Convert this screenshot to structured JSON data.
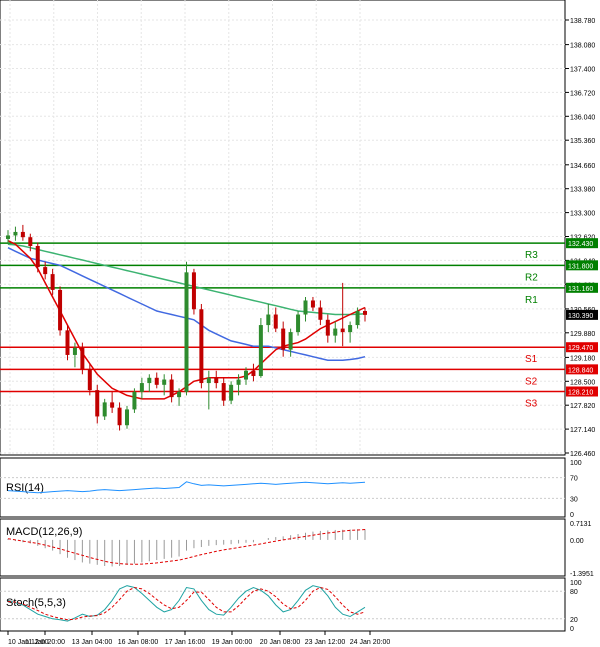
{
  "chart_data": {
    "type": "candlestick",
    "symbol_hint": "",
    "price_axis": {
      "ticks": [
        "138.780",
        "138.080",
        "137.400",
        "136.720",
        "136.040",
        "135.360",
        "134.660",
        "133.980",
        "133.300",
        "132.620",
        "131.940",
        "131.260",
        "130.560",
        "129.880",
        "129.180",
        "128.500",
        "127.820",
        "127.140",
        "126.460"
      ],
      "range": [
        126.46,
        138.78
      ]
    },
    "x_axis": {
      "ticks": [
        "10 Jan 12:00",
        "11 Jan 20:00",
        "13 Jan 04:00",
        "16 Jan 08:00",
        "17 Jan 16:00",
        "19 Jan 00:00",
        "20 Jan 08:00",
        "23 Jan 12:00",
        "24 Jan 20:00"
      ]
    },
    "levels": [
      {
        "name": "R3",
        "value": "132.430",
        "color": "#008000"
      },
      {
        "name": "R2",
        "value": "131.800",
        "color": "#008000"
      },
      {
        "name": "R1",
        "value": "131.160",
        "color": "#008000"
      },
      {
        "name": "S1",
        "value": "129.470",
        "color": "#e00000"
      },
      {
        "name": "S2",
        "value": "128.840",
        "color": "#e00000"
      },
      {
        "name": "S3",
        "value": "128.210",
        "color": "#e00000"
      }
    ],
    "current_price": "130.390",
    "candles": [
      [
        132.55,
        132.8,
        132.4,
        132.65
      ],
      [
        132.65,
        132.9,
        132.5,
        132.75
      ],
      [
        132.75,
        132.95,
        132.5,
        132.6
      ],
      [
        132.6,
        132.7,
        132.2,
        132.35
      ],
      [
        132.35,
        132.45,
        131.6,
        131.75
      ],
      [
        131.75,
        131.9,
        131.4,
        131.55
      ],
      [
        131.55,
        131.7,
        130.95,
        131.1
      ],
      [
        131.1,
        131.2,
        129.8,
        129.95
      ],
      [
        129.95,
        130.1,
        129.1,
        129.25
      ],
      [
        129.25,
        129.6,
        128.9,
        129.45
      ],
      [
        129.45,
        129.6,
        128.7,
        128.85
      ],
      [
        128.85,
        129.0,
        128.1,
        128.25
      ],
      [
        128.25,
        128.4,
        127.3,
        127.5
      ],
      [
        127.5,
        128.0,
        127.4,
        127.9
      ],
      [
        127.9,
        128.2,
        127.6,
        127.75
      ],
      [
        127.75,
        127.9,
        127.1,
        127.25
      ],
      [
        127.25,
        127.8,
        127.15,
        127.7
      ],
      [
        127.7,
        128.3,
        127.6,
        128.2
      ],
      [
        128.2,
        128.6,
        128.0,
        128.45
      ],
      [
        128.45,
        128.7,
        128.2,
        128.6
      ],
      [
        128.6,
        128.75,
        128.3,
        128.4
      ],
      [
        128.4,
        128.7,
        128.1,
        128.55
      ],
      [
        128.55,
        128.7,
        127.9,
        128.05
      ],
      [
        128.05,
        128.3,
        127.8,
        128.2
      ],
      [
        128.2,
        131.9,
        128.1,
        131.6
      ],
      [
        131.6,
        131.7,
        130.4,
        130.55
      ],
      [
        130.55,
        130.7,
        128.3,
        128.45
      ],
      [
        128.45,
        128.8,
        127.7,
        128.6
      ],
      [
        128.6,
        128.8,
        128.3,
        128.45
      ],
      [
        128.45,
        128.6,
        127.8,
        127.95
      ],
      [
        127.95,
        128.5,
        127.85,
        128.4
      ],
      [
        128.4,
        128.7,
        128.1,
        128.55
      ],
      [
        128.55,
        128.9,
        128.4,
        128.8
      ],
      [
        128.8,
        129.0,
        128.5,
        128.65
      ],
      [
        128.65,
        130.3,
        128.6,
        130.1
      ],
      [
        130.1,
        130.7,
        129.9,
        130.4
      ],
      [
        130.4,
        130.6,
        129.9,
        130.0
      ],
      [
        130.0,
        130.2,
        129.2,
        129.4
      ],
      [
        129.4,
        130.0,
        129.2,
        129.9
      ],
      [
        129.9,
        130.5,
        129.8,
        130.4
      ],
      [
        130.4,
        130.9,
        130.2,
        130.8
      ],
      [
        130.8,
        130.9,
        130.5,
        130.6
      ],
      [
        130.6,
        130.8,
        130.1,
        130.25
      ],
      [
        130.25,
        130.4,
        129.6,
        129.8
      ],
      [
        129.8,
        130.2,
        129.6,
        130.0
      ],
      [
        130.0,
        131.3,
        129.5,
        129.9
      ],
      [
        129.9,
        130.2,
        129.6,
        130.1
      ],
      [
        130.1,
        130.6,
        130.0,
        130.5
      ],
      [
        130.5,
        130.6,
        130.2,
        130.39
      ]
    ],
    "ma_red": [
      132.5,
      132.4,
      132.2,
      132.0,
      131.7,
      131.3,
      130.9,
      130.5,
      130.1,
      129.7,
      129.3,
      129.0,
      128.7,
      128.5,
      128.3,
      128.2,
      128.1,
      128.05,
      128.0,
      128.0,
      128.0,
      128.0,
      128.1,
      128.2,
      128.35,
      128.5,
      128.55,
      128.6,
      128.6,
      128.6,
      128.6,
      128.6,
      128.65,
      128.8,
      129.0,
      129.2,
      129.4,
      129.5,
      129.55,
      129.6,
      129.7,
      129.85,
      130.0,
      130.1,
      130.2,
      130.3,
      130.4,
      130.5,
      130.6
    ],
    "ma_blue": [
      132.3,
      132.2,
      132.1,
      132.0,
      131.95,
      131.9,
      131.85,
      131.8,
      131.7,
      131.6,
      131.5,
      131.4,
      131.3,
      131.2,
      131.1,
      131.0,
      130.9,
      130.8,
      130.7,
      130.6,
      130.5,
      130.45,
      130.4,
      130.35,
      130.3,
      130.25,
      130.1,
      129.95,
      129.85,
      129.75,
      129.65,
      129.6,
      129.55,
      129.5,
      129.5,
      129.5,
      129.45,
      129.4,
      129.35,
      129.3,
      129.25,
      129.2,
      129.15,
      129.1,
      129.1,
      129.1,
      129.12,
      129.15,
      129.2
    ],
    "ma_green": [
      132.4,
      132.38,
      132.35,
      132.3,
      132.25,
      132.2,
      132.15,
      132.1,
      132.05,
      132.0,
      131.95,
      131.9,
      131.85,
      131.8,
      131.75,
      131.7,
      131.65,
      131.6,
      131.55,
      131.5,
      131.45,
      131.4,
      131.35,
      131.3,
      131.25,
      131.2,
      131.15,
      131.1,
      131.05,
      131.0,
      130.95,
      130.9,
      130.85,
      130.8,
      130.75,
      130.7,
      130.65,
      130.6,
      130.55,
      130.5,
      130.48,
      130.46,
      130.44,
      130.42,
      130.4,
      130.4,
      130.4,
      130.41,
      130.42
    ],
    "rsi": {
      "label": "RSI(14)",
      "ticks": [
        "100",
        "70",
        "30",
        "0"
      ],
      "values": [
        45,
        44,
        43,
        42,
        41,
        42,
        43,
        44,
        45,
        44,
        43,
        44,
        46,
        47,
        46,
        45,
        46,
        47,
        48,
        49,
        50,
        49,
        50,
        51,
        62,
        58,
        55,
        56,
        55,
        54,
        55,
        56,
        57,
        58,
        59,
        58,
        57,
        58,
        59,
        60,
        61,
        60,
        59,
        58,
        59,
        60,
        59,
        60,
        61
      ]
    },
    "macd": {
      "label": "MACD(12,26,9)",
      "ticks": [
        "0.7131",
        "0.00",
        "-1.3951"
      ],
      "range": [
        -1.3951,
        0.7131
      ],
      "hist": [
        0.05,
        -0.05,
        -0.1,
        -0.15,
        -0.25,
        -0.35,
        -0.45,
        -0.6,
        -0.75,
        -0.85,
        -0.95,
        -1.0,
        -1.05,
        -1.1,
        -1.12,
        -1.1,
        -1.05,
        -1.0,
        -0.95,
        -0.9,
        -0.85,
        -0.8,
        -0.75,
        -0.7,
        -0.45,
        -0.35,
        -0.3,
        -0.25,
        -0.22,
        -0.2,
        -0.18,
        -0.15,
        -0.12,
        -0.1,
        0.0,
        0.08,
        0.12,
        0.15,
        0.2,
        0.25,
        0.3,
        0.35,
        0.38,
        0.4,
        0.42,
        0.43,
        0.44,
        0.45,
        0.45
      ],
      "signal": [
        0.05,
        0.0,
        -0.05,
        -0.1,
        -0.15,
        -0.22,
        -0.3,
        -0.38,
        -0.47,
        -0.56,
        -0.65,
        -0.74,
        -0.82,
        -0.9,
        -0.96,
        -1.0,
        -1.02,
        -1.03,
        -1.02,
        -1.0,
        -0.97,
        -0.93,
        -0.89,
        -0.85,
        -0.78,
        -0.7,
        -0.62,
        -0.55,
        -0.48,
        -0.42,
        -0.37,
        -0.32,
        -0.27,
        -0.22,
        -0.17,
        -0.11,
        -0.05,
        0.0,
        0.05,
        0.1,
        0.15,
        0.2,
        0.25,
        0.29,
        0.33,
        0.37,
        0.4,
        0.42,
        0.44
      ]
    },
    "stoch": {
      "label": "Stoch(5,5,3)",
      "ticks": [
        "100",
        "80",
        "20",
        "0"
      ],
      "k": [
        60,
        55,
        50,
        40,
        30,
        25,
        20,
        18,
        15,
        22,
        30,
        25,
        28,
        40,
        60,
        85,
        92,
        88,
        75,
        60,
        45,
        35,
        40,
        60,
        88,
        85,
        60,
        40,
        30,
        28,
        45,
        65,
        80,
        88,
        82,
        70,
        50,
        35,
        40,
        60,
        82,
        92,
        88,
        70,
        45,
        30,
        25,
        35,
        45
      ],
      "d": [
        58,
        56,
        52,
        45,
        38,
        30,
        25,
        21,
        18,
        19,
        24,
        26,
        27,
        33,
        45,
        62,
        80,
        88,
        85,
        75,
        62,
        50,
        42,
        45,
        60,
        78,
        78,
        62,
        45,
        35,
        35,
        48,
        65,
        80,
        85,
        80,
        68,
        52,
        42,
        45,
        60,
        80,
        88,
        84,
        68,
        50,
        35,
        30,
        35
      ]
    }
  }
}
